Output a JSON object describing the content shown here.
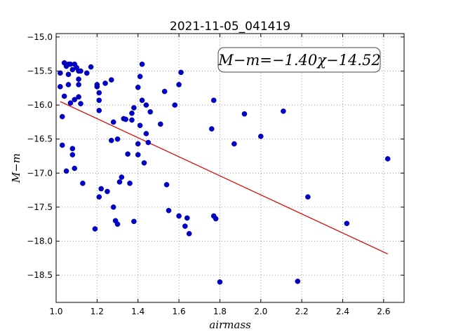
{
  "chart_data": {
    "type": "scatter",
    "title": "2021-11-05_041419",
    "xlabel": "airmass",
    "ylabel": "M−m",
    "xlim": [
      1.0,
      2.7
    ],
    "ylim": [
      -18.9,
      -14.95
    ],
    "y_inverted": true,
    "xticks": [
      "1.0",
      "1.2",
      "1.4",
      "1.6",
      "1.8",
      "2.0",
      "2.2",
      "2.4",
      "2.6"
    ],
    "yticks": [
      "−15.0",
      "−15.5",
      "−16.0",
      "−16.5",
      "−17.0",
      "−17.5",
      "−18.0",
      "−18.5"
    ],
    "grid": true,
    "point_color": "#0000cc",
    "line_color": "#dd0000",
    "annotation": "M−m=−1.40χ−14.52",
    "fit": {
      "slope": -1.4,
      "intercept": -14.52,
      "x_range": [
        1.02,
        2.62
      ]
    },
    "points": [
      [
        1.02,
        -15.53
      ],
      [
        1.02,
        -15.73
      ],
      [
        1.04,
        -15.38
      ],
      [
        1.05,
        -15.43
      ],
      [
        1.06,
        -15.4
      ],
      [
        1.06,
        -15.7
      ],
      [
        1.07,
        -15.4
      ],
      [
        1.08,
        -15.48
      ],
      [
        1.09,
        -15.4
      ],
      [
        1.1,
        -15.45
      ],
      [
        1.11,
        -15.5
      ],
      [
        1.12,
        -15.5
      ],
      [
        1.04,
        -15.87
      ],
      [
        1.07,
        -15.97
      ],
      [
        1.09,
        -15.92
      ],
      [
        1.11,
        -15.88
      ],
      [
        1.12,
        -15.98
      ],
      [
        1.11,
        -15.62
      ],
      [
        1.11,
        -15.7
      ],
      [
        1.06,
        -15.55
      ],
      [
        1.15,
        -15.53
      ],
      [
        1.17,
        -15.44
      ],
      [
        1.2,
        -15.7
      ],
      [
        1.2,
        -15.73
      ],
      [
        1.21,
        -15.82
      ],
      [
        1.21,
        -15.93
      ],
      [
        1.21,
        -16.08
      ],
      [
        1.24,
        -15.68
      ],
      [
        1.27,
        -15.63
      ],
      [
        1.03,
        -16.17
      ],
      [
        1.03,
        -16.59
      ],
      [
        1.05,
        -16.97
      ],
      [
        1.08,
        -16.64
      ],
      [
        1.08,
        -16.73
      ],
      [
        1.09,
        -16.93
      ],
      [
        1.13,
        -17.15
      ],
      [
        1.19,
        -17.82
      ],
      [
        1.22,
        -17.23
      ],
      [
        1.21,
        -17.35
      ],
      [
        1.25,
        -17.27
      ],
      [
        1.28,
        -16.25
      ],
      [
        1.27,
        -16.52
      ],
      [
        1.3,
        -16.5
      ],
      [
        1.28,
        -17.5
      ],
      [
        1.29,
        -17.7
      ],
      [
        1.3,
        -17.75
      ],
      [
        1.31,
        -17.13
      ],
      [
        1.32,
        -17.06
      ],
      [
        1.33,
        -16.2
      ],
      [
        1.34,
        -16.21
      ],
      [
        1.35,
        -16.72
      ],
      [
        1.36,
        -17.15
      ],
      [
        1.37,
        -16.22
      ],
      [
        1.37,
        -16.12
      ],
      [
        1.38,
        -16.04
      ],
      [
        1.38,
        -17.71
      ],
      [
        1.4,
        -15.74
      ],
      [
        1.41,
        -15.58
      ],
      [
        1.42,
        -15.4
      ],
      [
        1.4,
        -16.57
      ],
      [
        1.4,
        -16.73
      ],
      [
        1.41,
        -16.3
      ],
      [
        1.42,
        -15.93
      ],
      [
        1.43,
        -16.85
      ],
      [
        1.44,
        -16.0
      ],
      [
        1.44,
        -16.42
      ],
      [
        1.45,
        -16.55
      ],
      [
        1.46,
        -16.1
      ],
      [
        1.51,
        -16.28
      ],
      [
        1.53,
        -15.8
      ],
      [
        1.54,
        -17.17
      ],
      [
        1.55,
        -17.55
      ],
      [
        1.58,
        -16.0
      ],
      [
        1.6,
        -15.7
      ],
      [
        1.61,
        -15.52
      ],
      [
        1.6,
        -17.63
      ],
      [
        1.63,
        -17.78
      ],
      [
        1.64,
        -17.66
      ],
      [
        1.65,
        -17.89
      ],
      [
        1.76,
        -16.35
      ],
      [
        1.77,
        -15.93
      ],
      [
        1.77,
        -17.63
      ],
      [
        1.78,
        -17.67
      ],
      [
        1.8,
        -18.6
      ],
      [
        1.87,
        -16.57
      ],
      [
        1.92,
        -16.13
      ],
      [
        2.0,
        -16.46
      ],
      [
        2.11,
        -16.09
      ],
      [
        2.18,
        -18.59
      ],
      [
        2.23,
        -17.35
      ],
      [
        2.42,
        -17.74
      ],
      [
        2.62,
        -16.79
      ]
    ]
  }
}
